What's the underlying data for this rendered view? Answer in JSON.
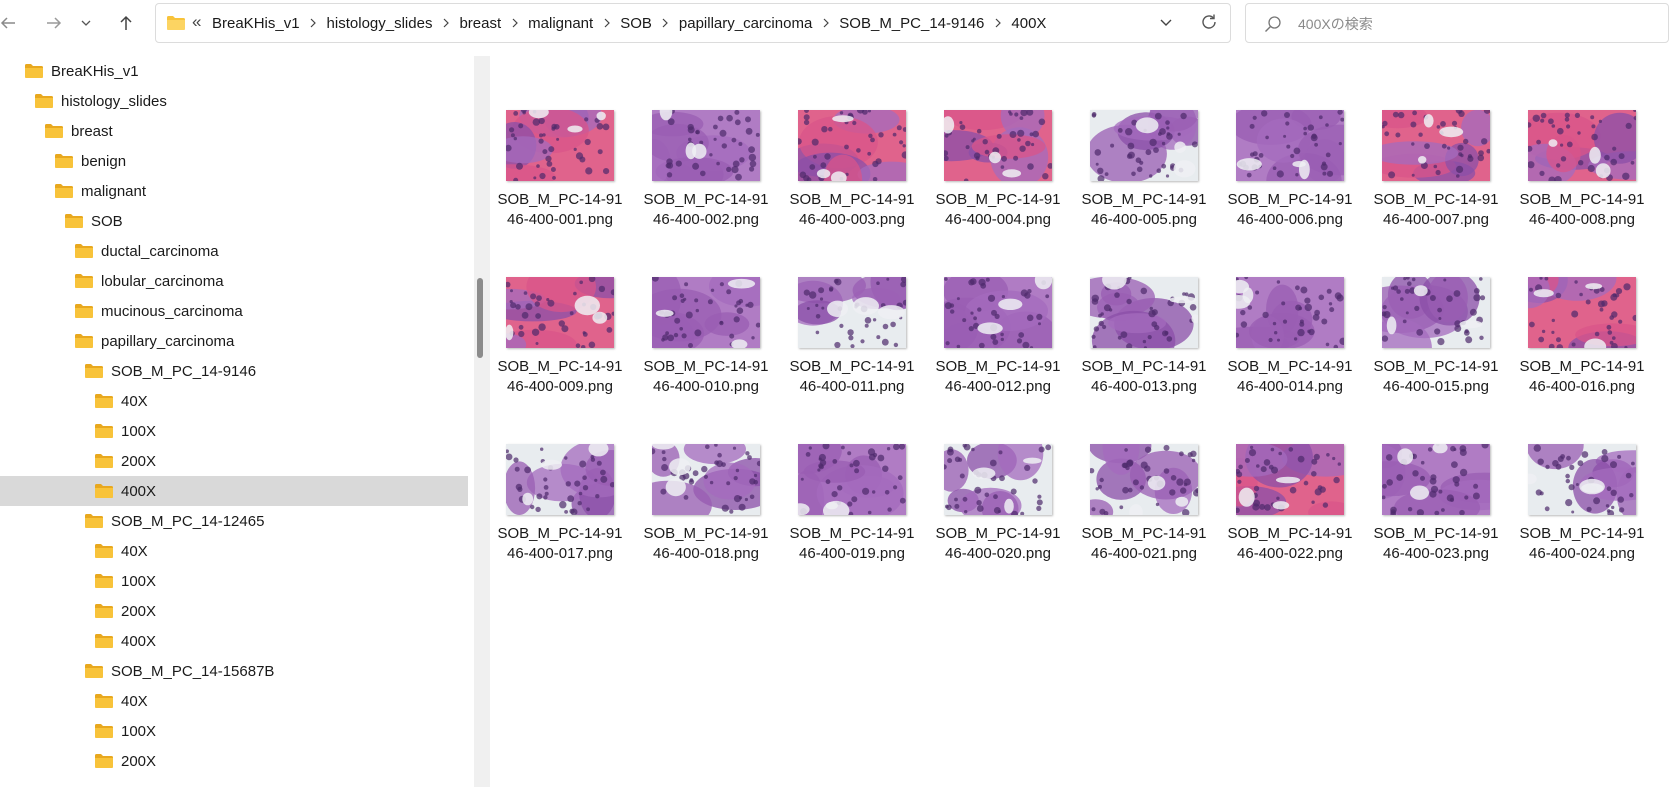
{
  "address": {
    "overflow_chevron": "«",
    "crumbs": [
      "BreaKHis_v1",
      "histology_slides",
      "breast",
      "malignant",
      "SOB",
      "papillary_carcinoma",
      "SOB_M_PC_14-9146",
      "400X"
    ]
  },
  "search": {
    "placeholder": "400Xの検索"
  },
  "icons": {
    "back": "arrow-left-icon",
    "forward": "arrow-right-icon",
    "recent": "chevron-down-icon",
    "up": "arrow-up-icon",
    "folder": "folder-icon",
    "dropdown": "chevron-down-icon",
    "refresh": "refresh-icon",
    "search": "search-icon"
  },
  "colors": {
    "folder": "#f8c33a",
    "folder_dark": "#e8a81f",
    "selected_row": "#d9d9d9",
    "tissue_purple": "#8b4fa8",
    "tissue_pink": "#e0638c",
    "tissue_white": "#e8ecef"
  },
  "sidebar": {
    "items": [
      {
        "label": "BreaKHis_v1",
        "level": 0
      },
      {
        "label": "histology_slides",
        "level": 1
      },
      {
        "label": "breast",
        "level": 2
      },
      {
        "label": "benign",
        "level": 3
      },
      {
        "label": "malignant",
        "level": 3
      },
      {
        "label": "SOB",
        "level": 4
      },
      {
        "label": "ductal_carcinoma",
        "level": 5
      },
      {
        "label": "lobular_carcinoma",
        "level": 5
      },
      {
        "label": "mucinous_carcinoma",
        "level": 5
      },
      {
        "label": "papillary_carcinoma",
        "level": 5
      },
      {
        "label": "SOB_M_PC_14-9146",
        "level": 6
      },
      {
        "label": "40X",
        "level": 7
      },
      {
        "label": "100X",
        "level": 7
      },
      {
        "label": "200X",
        "level": 7
      },
      {
        "label": "400X",
        "level": 7,
        "selected": true
      },
      {
        "label": "SOB_M_PC_14-12465",
        "level": 6
      },
      {
        "label": "40X",
        "level": 7
      },
      {
        "label": "100X",
        "level": 7
      },
      {
        "label": "200X",
        "level": 7
      },
      {
        "label": "400X",
        "level": 7
      },
      {
        "label": "SOB_M_PC_14-15687B",
        "level": 6
      },
      {
        "label": "40X",
        "level": 7
      },
      {
        "label": "100X",
        "level": 7
      },
      {
        "label": "200X",
        "level": 7
      }
    ]
  },
  "files": [
    {
      "name": "SOB_M_PC-14-91\n46-400-001.png",
      "tone": "pink"
    },
    {
      "name": "SOB_M_PC-14-91\n46-400-002.png",
      "tone": "purple"
    },
    {
      "name": "SOB_M_PC-14-91\n46-400-003.png",
      "tone": "pink"
    },
    {
      "name": "SOB_M_PC-14-91\n46-400-004.png",
      "tone": "pink"
    },
    {
      "name": "SOB_M_PC-14-91\n46-400-005.png",
      "tone": "white"
    },
    {
      "name": "SOB_M_PC-14-91\n46-400-006.png",
      "tone": "purple"
    },
    {
      "name": "SOB_M_PC-14-91\n46-400-007.png",
      "tone": "pink"
    },
    {
      "name": "SOB_M_PC-14-91\n46-400-008.png",
      "tone": "pink"
    },
    {
      "name": "SOB_M_PC-14-91\n46-400-009.png",
      "tone": "pink"
    },
    {
      "name": "SOB_M_PC-14-91\n46-400-010.png",
      "tone": "purple"
    },
    {
      "name": "SOB_M_PC-14-91\n46-400-011.png",
      "tone": "white"
    },
    {
      "name": "SOB_M_PC-14-91\n46-400-012.png",
      "tone": "purple"
    },
    {
      "name": "SOB_M_PC-14-91\n46-400-013.png",
      "tone": "white"
    },
    {
      "name": "SOB_M_PC-14-91\n46-400-014.png",
      "tone": "purple"
    },
    {
      "name": "SOB_M_PC-14-91\n46-400-015.png",
      "tone": "white"
    },
    {
      "name": "SOB_M_PC-14-91\n46-400-016.png",
      "tone": "pink"
    },
    {
      "name": "SOB_M_PC-14-91\n46-400-017.png",
      "tone": "white"
    },
    {
      "name": "SOB_M_PC-14-91\n46-400-018.png",
      "tone": "white"
    },
    {
      "name": "SOB_M_PC-14-91\n46-400-019.png",
      "tone": "purple"
    },
    {
      "name": "SOB_M_PC-14-91\n46-400-020.png",
      "tone": "white"
    },
    {
      "name": "SOB_M_PC-14-91\n46-400-021.png",
      "tone": "white"
    },
    {
      "name": "SOB_M_PC-14-91\n46-400-022.png",
      "tone": "pink"
    },
    {
      "name": "SOB_M_PC-14-91\n46-400-023.png",
      "tone": "purple"
    },
    {
      "name": "SOB_M_PC-14-91\n46-400-024.png",
      "tone": "white"
    }
  ]
}
